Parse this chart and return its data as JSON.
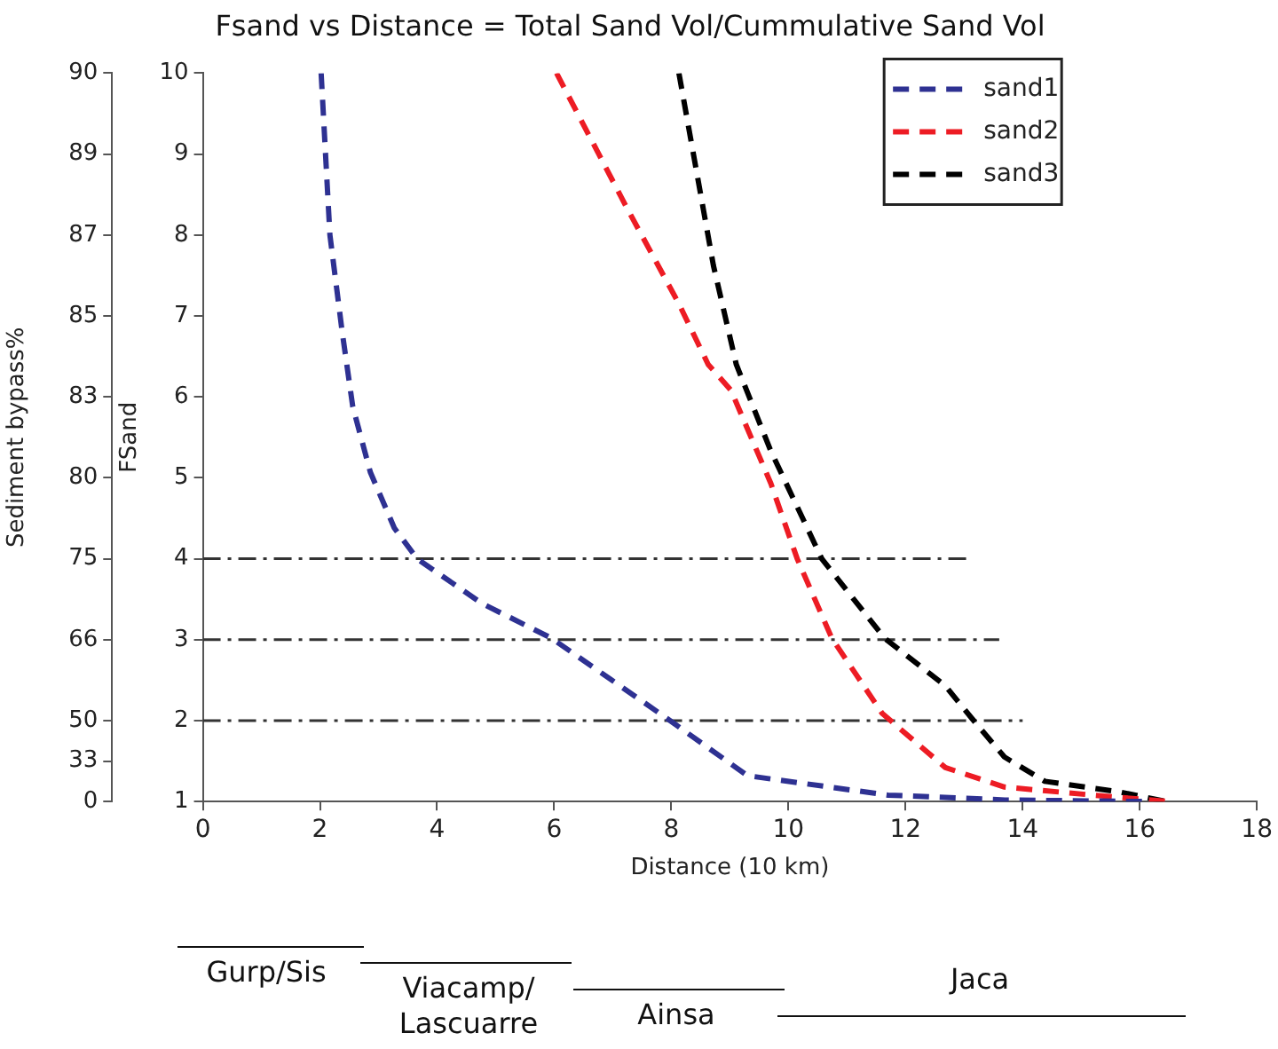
{
  "chart_data": {
    "type": "line",
    "title": "Fsand vs Distance = Total Sand Vol/Cummulative Sand Vol",
    "xlabel": "Distance (10 km)",
    "ylabel": "FSand",
    "xlim": [
      0,
      18
    ],
    "xticks": [
      0,
      2,
      4,
      6,
      8,
      10,
      12,
      14,
      16,
      18
    ],
    "ylim": [
      1,
      10
    ],
    "yticks": [
      1,
      2,
      3,
      4,
      5,
      6,
      7,
      8,
      9,
      10
    ],
    "legend": "top right",
    "grid": false,
    "line_style": "dashed",
    "marker": "none",
    "series": [
      {
        "name": "sand1",
        "color": "#2e3192",
        "x": [
          2.02,
          2.17,
          2.38,
          2.56,
          2.86,
          3.27,
          3.66,
          4.76,
          5.95,
          7.92,
          9.3,
          11.7,
          13.7,
          16.2
        ],
        "values": [
          10,
          8.0,
          6.8,
          5.88,
          5.07,
          4.38,
          4.0,
          3.45,
          3.02,
          2.03,
          1.32,
          1.08,
          1.02,
          1.0
        ]
      },
      {
        "name": "sand2",
        "color": "#ed1c24",
        "x": [
          6.04,
          7.23,
          8.13,
          8.63,
          9.02,
          9.7,
          10.15,
          10.74,
          11.6,
          12.68,
          13.69,
          15.2,
          16.5
        ],
        "values": [
          10,
          8.35,
          7.15,
          6.4,
          6.08,
          4.93,
          4.0,
          3.02,
          2.09,
          1.42,
          1.18,
          1.08,
          1.0
        ]
      },
      {
        "name": "sand3",
        "color": "#000000",
        "x": [
          8.13,
          8.42,
          8.72,
          9.11,
          9.7,
          10.57,
          11.64,
          12.68,
          13.13,
          13.69,
          14.38,
          15.65,
          16.46
        ],
        "values": [
          10,
          8.83,
          7.62,
          6.4,
          5.33,
          4.0,
          3.02,
          2.43,
          2.03,
          1.55,
          1.25,
          1.12,
          1.0
        ]
      },
      {
        "color": "#333333",
        "x": [
          0,
          13.1
        ],
        "values": [
          4,
          4
        ]
      },
      {
        "color": "#333333",
        "x": [
          0,
          13.6
        ],
        "values": [
          3,
          3
        ]
      },
      {
        "color": "#333333",
        "x": [
          0,
          14.0
        ],
        "values": [
          2,
          2
        ]
      }
    ],
    "annotations": [
      "Sediment bypass%",
      "0",
      "33",
      "50",
      "66",
      "75",
      "80",
      "83",
      "85",
      "87",
      "89",
      "90",
      "Gurp/Sis",
      "Viacamp/\nLascuarre",
      "Ainsa",
      "Jaca"
    ]
  }
}
